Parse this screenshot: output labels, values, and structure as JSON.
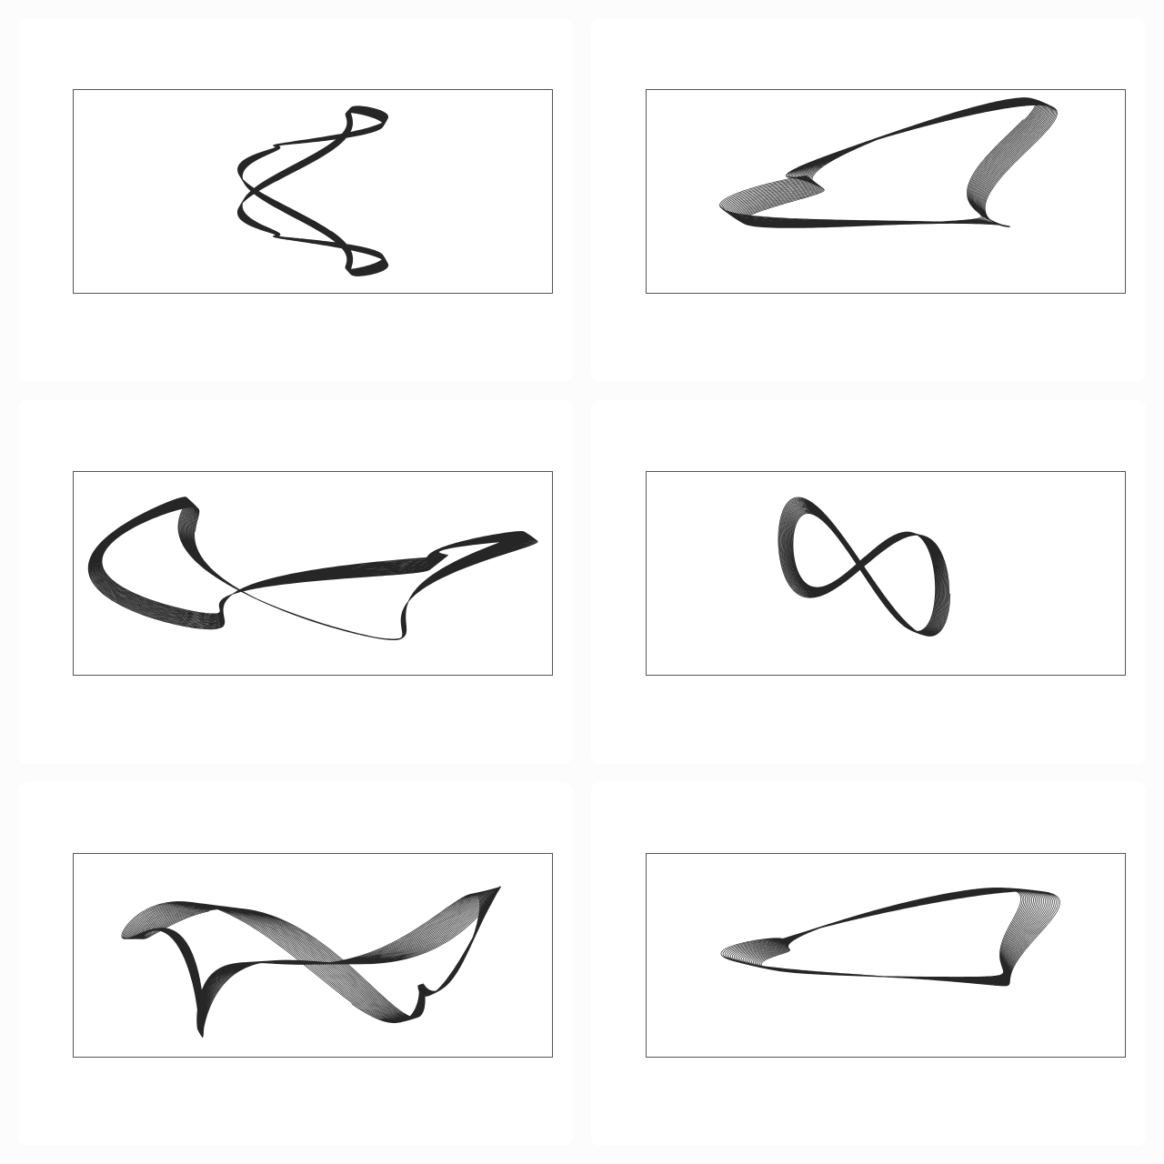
{
  "colors": {
    "page_background": "#fcfcfc",
    "card_background": "#ffffff",
    "frame_border": "#555555",
    "stroke": "#000000"
  },
  "panels": [
    {
      "figure": "harmonograph",
      "shape": "barrel"
    },
    {
      "figure": "harmonograph",
      "shape": "tilted-ellipses"
    },
    {
      "figure": "harmonograph",
      "shape": "wide-band"
    },
    {
      "figure": "harmonograph",
      "shape": "bowtie"
    },
    {
      "figure": "harmonograph",
      "shape": "layered-loops"
    },
    {
      "figure": "harmonograph",
      "shape": "tilted-oval-knot"
    }
  ]
}
